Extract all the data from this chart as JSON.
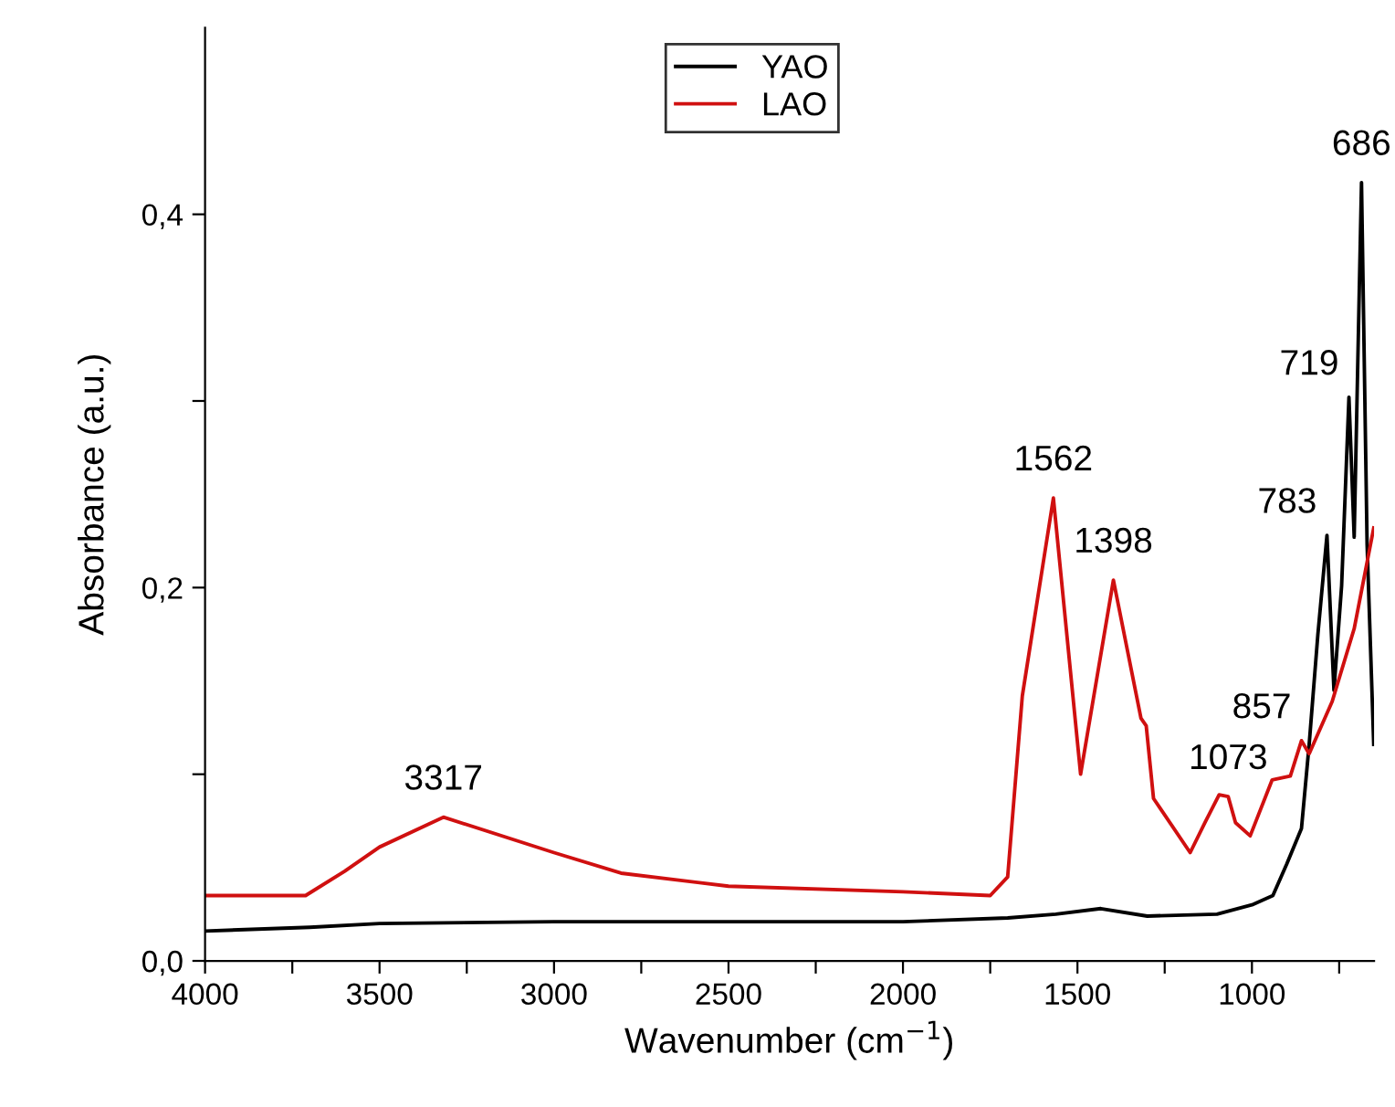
{
  "chart_data": {
    "type": "line",
    "xlabel": "Wavenumber (cm$^{−1}$)",
    "ylabel": "Absorbance (a.u.)",
    "xlim": [
      4000,
      650
    ],
    "ylim": [
      0,
      0.5
    ],
    "xticks": [
      4000,
      {
        "value": 3750,
        "label": null
      },
      3500,
      {
        "value": 3250,
        "label": null
      },
      3000,
      {
        "value": 2750,
        "label": null
      },
      2500,
      {
        "value": 2250,
        "label": null
      },
      2000,
      {
        "value": 1750,
        "label": null
      },
      1500,
      {
        "value": 1250,
        "label": null
      },
      1000,
      {
        "value": 750,
        "label": null
      }
    ],
    "yticks": [
      {
        "value": 0,
        "label": "0,0"
      },
      {
        "value": 0.1,
        "label": null
      },
      {
        "value": 0.2,
        "label": "0,2"
      },
      {
        "value": 0.3,
        "label": null
      },
      {
        "value": 0.4,
        "label": "0,4"
      }
    ],
    "legend": "top",
    "grid": false,
    "marker": "none",
    "line_style": "solid",
    "series": [
      {
        "name": "YAO",
        "color": "#000000",
        "x": [
          4000,
          3700,
          3500,
          3000,
          2500,
          2000,
          1700,
          1562,
          1433,
          1300,
          1100,
          1000,
          940,
          900,
          858,
          836,
          811,
          785,
          765,
          743,
          722,
          707,
          686,
          670,
          651
        ],
        "values": [
          0.016,
          0.018,
          0.02,
          0.021,
          0.021,
          0.021,
          0.023,
          0.025,
          0.028,
          0.024,
          0.025,
          0.03,
          0.035,
          0.052,
          0.071,
          0.116,
          0.175,
          0.228,
          0.145,
          0.201,
          0.302,
          0.227,
          0.417,
          0.223,
          0.116
        ]
      },
      {
        "name": "LAO",
        "color": "#d01010",
        "x": [
          4000,
          3712,
          3600,
          3500,
          3317,
          3000,
          2808,
          2500,
          2000,
          1750,
          1700,
          1658,
          1569,
          1491,
          1397,
          1318,
          1303,
          1282,
          1177,
          1135,
          1094,
          1068,
          1047,
          1005,
          942,
          890,
          858,
          836,
          770,
          707,
          651
        ],
        "values": [
          0.035,
          0.035,
          0.048,
          0.061,
          0.077,
          0.058,
          0.047,
          0.04,
          0.037,
          0.035,
          0.045,
          0.142,
          0.248,
          0.1,
          0.204,
          0.13,
          0.126,
          0.087,
          0.058,
          0.074,
          0.089,
          0.088,
          0.074,
          0.067,
          0.097,
          0.099,
          0.118,
          0.111,
          0.139,
          0.178,
          0.232
        ]
      }
    ],
    "annotations": [
      {
        "text": "3317",
        "x": 3317,
        "y": 0.077
      },
      {
        "text": "1562",
        "x": 1569,
        "y": 0.248
      },
      {
        "text": "1398",
        "x": 1397,
        "y": 0.204
      },
      {
        "text": "1073",
        "x": 1068,
        "y": 0.088
      },
      {
        "text": "857",
        "x": 858,
        "y": 0.118
      },
      {
        "text": "783",
        "x": 785,
        "y": 0.228
      },
      {
        "text": "719",
        "x": 722,
        "y": 0.302
      },
      {
        "text": "686",
        "x": 686,
        "y": 0.417
      }
    ]
  }
}
